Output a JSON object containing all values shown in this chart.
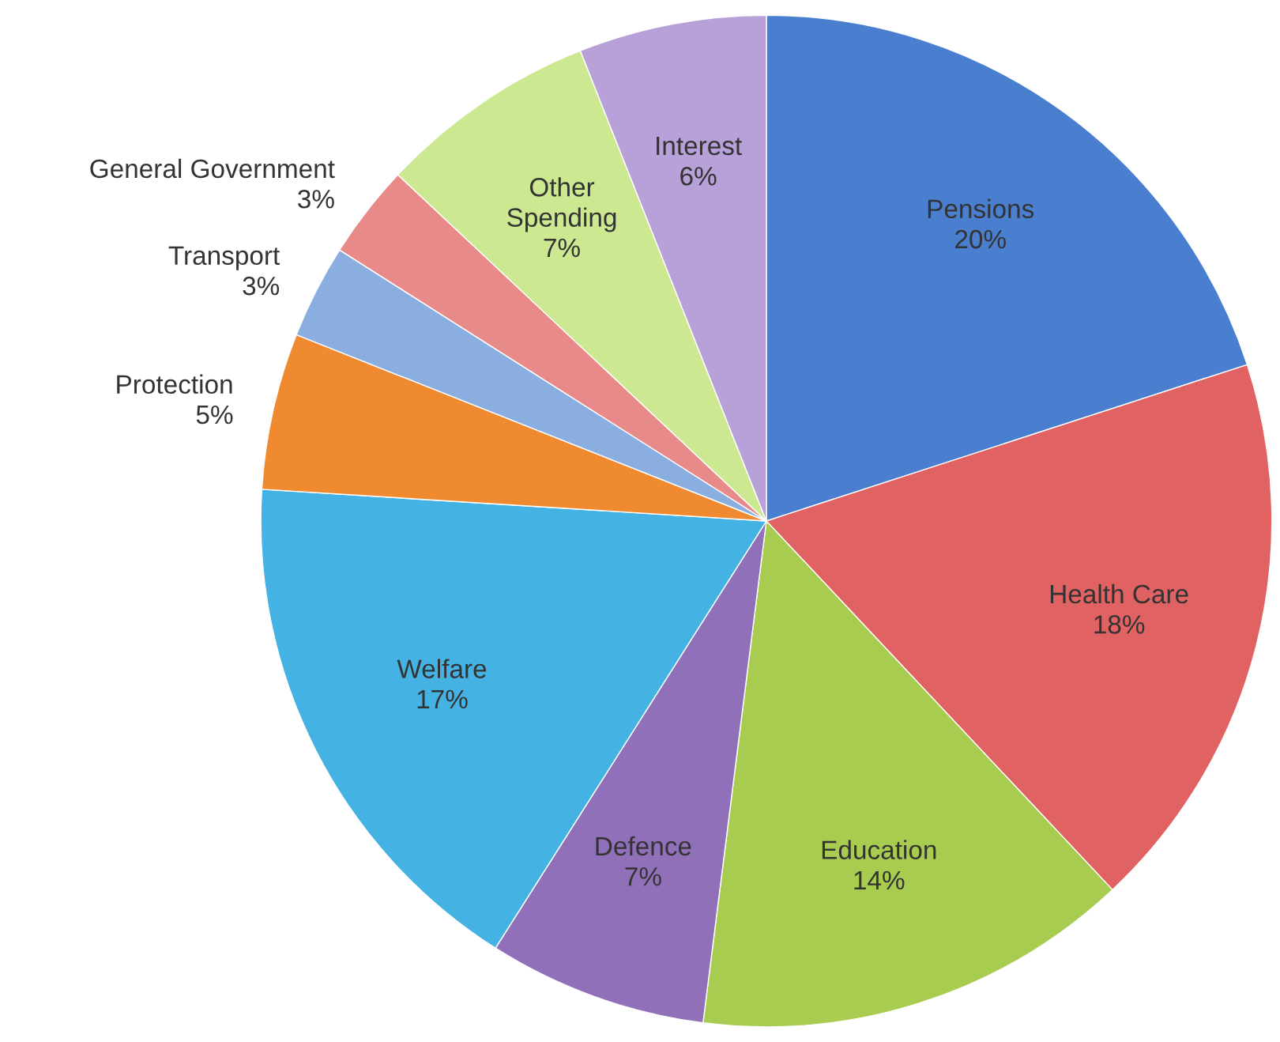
{
  "chart_data": {
    "type": "pie",
    "categories": [
      "Pensions",
      "Health Care",
      "Education",
      "Defence",
      "Welfare",
      "Protection",
      "Transport",
      "General Government",
      "Other\nSpending",
      "Interest"
    ],
    "values": [
      20,
      18,
      14,
      7,
      17,
      5,
      3,
      3,
      7,
      6
    ],
    "value_labels": [
      "20%",
      "18%",
      "14%",
      "7%",
      "17%",
      "5%",
      "3%",
      "3%",
      "7%",
      "6%"
    ],
    "colors": [
      "#4a7fd0",
      "#e06262",
      "#a8cc50",
      "#9070b8",
      "#44b2e2",
      "#f08a30",
      "#8aaee0",
      "#e88a8a",
      "#cce890",
      "#b8a0d8"
    ]
  }
}
